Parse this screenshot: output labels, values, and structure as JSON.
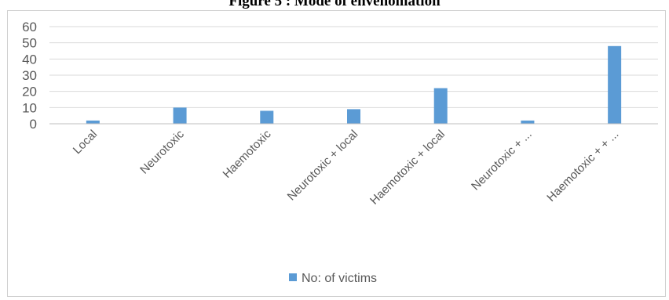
{
  "figure": {
    "title": "Figure 5 : Mode of envenomation"
  },
  "chart_data": {
    "type": "bar",
    "categories": [
      "Local",
      "Neurotoxic",
      "Haemotoxic",
      "Neurotoxic + local",
      "Haemotoxic + local",
      "Neurotoxic + ...",
      "Haemotoxic + + ..."
    ],
    "series": [
      {
        "name": "No: of victims",
        "color": "#5B9BD5",
        "values": [
          2,
          10,
          8,
          9,
          22,
          2,
          48
        ]
      }
    ],
    "ylim": [
      0,
      60
    ],
    "yticks": [
      0,
      10,
      20,
      30,
      40,
      50,
      60
    ],
    "grid": true,
    "legend": "bottom",
    "xlabel": "",
    "ylabel": ""
  }
}
